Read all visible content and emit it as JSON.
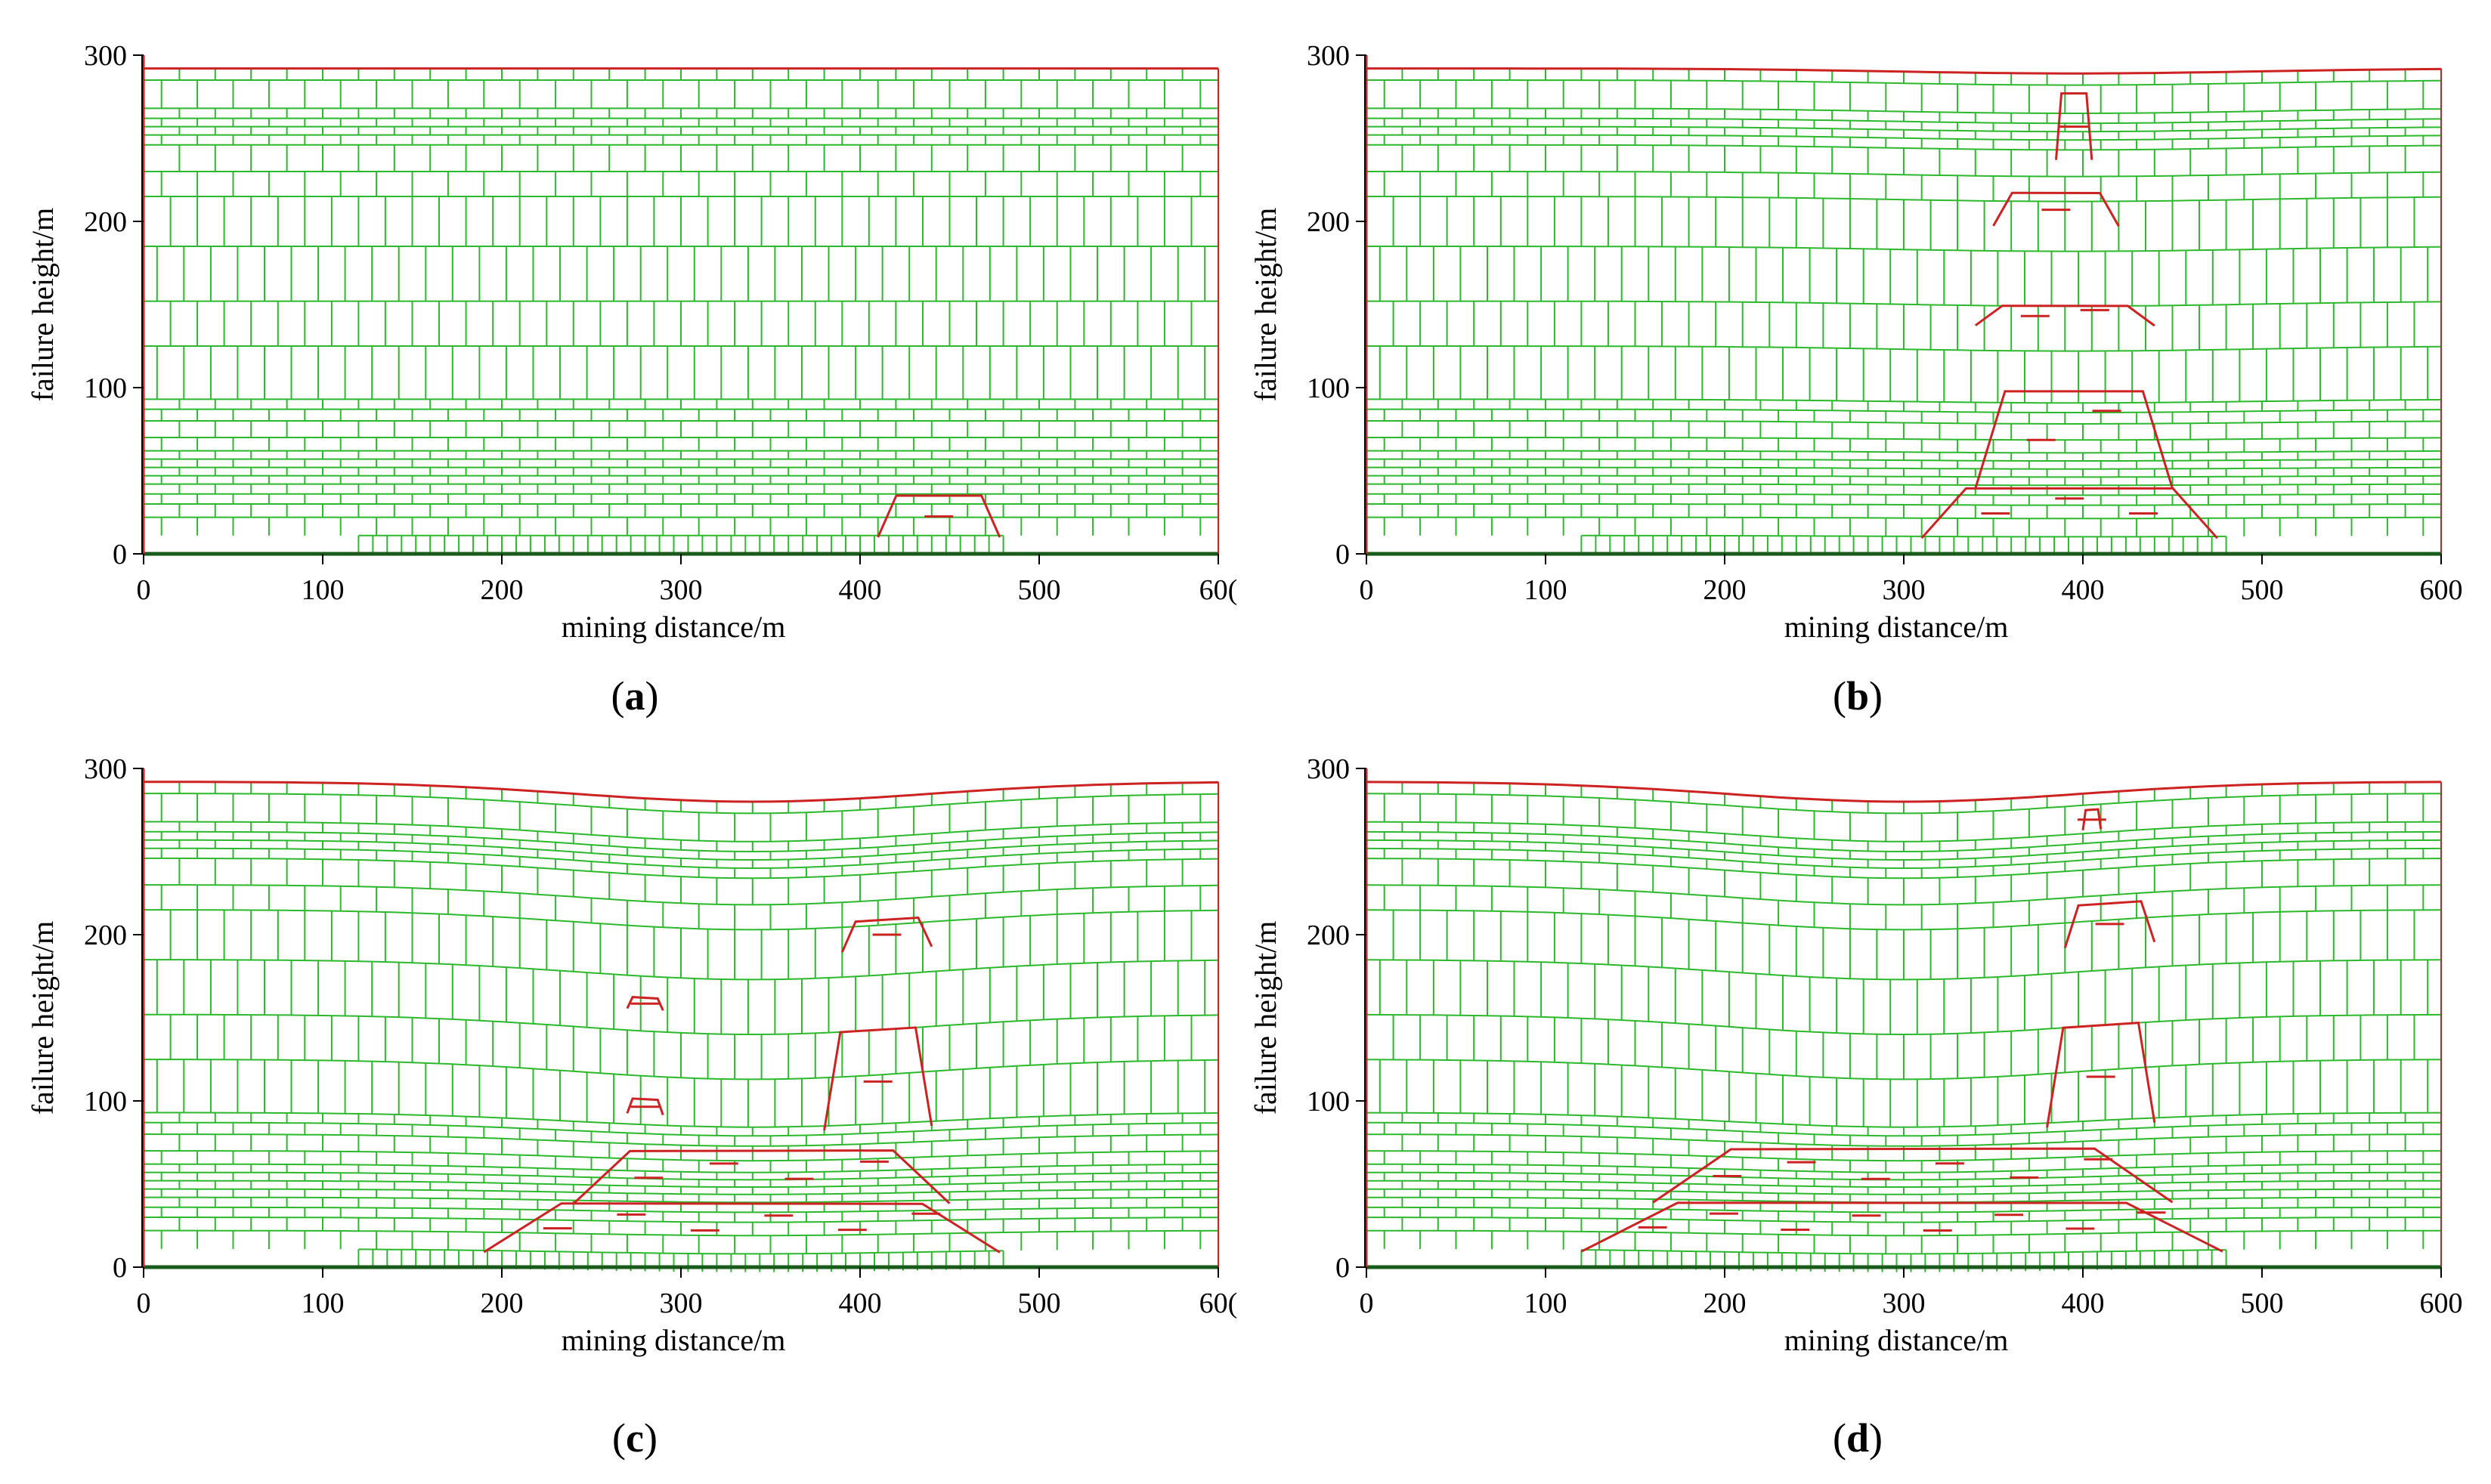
{
  "figure": {
    "captions": [
      "(a)",
      "(b)",
      "(c)",
      "(d)"
    ],
    "caption_letters": [
      "a",
      "b",
      "c",
      "d"
    ],
    "colors": {
      "block": "#2db82d",
      "failure": "#cc2222",
      "axis": "#000000",
      "baseline": "#1a5a1a"
    }
  },
  "chart_data": [
    {
      "panel": "a",
      "type": "other",
      "title": "",
      "xlabel": "mining distance/m",
      "ylabel": "failure height/m",
      "xlim": [
        0,
        600
      ],
      "ylim": [
        0,
        300
      ],
      "xticks": [
        "0",
        "100",
        "200",
        "300",
        "400",
        "500",
        "60("
      ],
      "yticks": [
        "0",
        "100",
        "200",
        "300"
      ],
      "model_extent_m": {
        "x": [
          0,
          600
        ],
        "y": [
          0,
          292
        ]
      },
      "coal_seam_extent_m": [
        120,
        480
      ],
      "subsidence_center_m": 440,
      "max_subsidence_m": 0,
      "failure_zones": [
        {
          "x": [
            410,
            478
          ],
          "y": [
            10,
            35
          ]
        }
      ]
    },
    {
      "panel": "b",
      "type": "other",
      "title": "",
      "xlabel": "mining distance/m",
      "ylabel": "failure height/m",
      "xlim": [
        0,
        600
      ],
      "ylim": [
        0,
        300
      ],
      "xticks": [
        "0",
        "100",
        "200",
        "300",
        "400",
        "500",
        "600"
      ],
      "yticks": [
        "0",
        "100",
        "200",
        "300"
      ],
      "model_extent_m": {
        "x": [
          0,
          600
        ],
        "y": [
          0,
          292
        ]
      },
      "coal_seam_extent_m": [
        120,
        480
      ],
      "subsidence_center_m": 395,
      "max_subsidence_m": 3,
      "failure_zones": [
        {
          "x": [
            310,
            475
          ],
          "y": [
            10,
            40
          ]
        },
        {
          "x": [
            340,
            450
          ],
          "y": [
            40,
            100
          ]
        },
        {
          "x": [
            340,
            440
          ],
          "y": [
            140,
            152
          ]
        },
        {
          "x": [
            350,
            420
          ],
          "y": [
            200,
            220
          ]
        },
        {
          "x": [
            385,
            405
          ],
          "y": [
            240,
            280
          ]
        }
      ]
    },
    {
      "panel": "c",
      "type": "other",
      "title": "",
      "xlabel": "mining distance/m",
      "ylabel": "failure height/m",
      "xlim": [
        0,
        600
      ],
      "ylim": [
        0,
        300
      ],
      "xticks": [
        "0",
        "100",
        "200",
        "300",
        "400",
        "500",
        "60("
      ],
      "yticks": [
        "0",
        "100",
        "200",
        "300"
      ],
      "model_extent_m": {
        "x": [
          0,
          600
        ],
        "y": [
          0,
          292
        ]
      },
      "coal_seam_extent_m": [
        120,
        480
      ],
      "subsidence_center_m": 340,
      "max_subsidence_m": 12,
      "failure_zones": [
        {
          "x": [
            190,
            478
          ],
          "y": [
            10,
            40
          ]
        },
        {
          "x": [
            240,
            450
          ],
          "y": [
            40,
            75
          ]
        },
        {
          "x": [
            270,
            290
          ],
          "y": [
            100,
            110
          ]
        },
        {
          "x": [
            380,
            440
          ],
          "y": [
            90,
            152
          ]
        },
        {
          "x": [
            270,
            290
          ],
          "y": [
            165,
            172
          ]
        },
        {
          "x": [
            390,
            440
          ],
          "y": [
            200,
            218
          ]
        }
      ]
    },
    {
      "panel": "d",
      "type": "other",
      "title": "",
      "xlabel": "mining distance/m",
      "ylabel": "failure height/m",
      "xlim": [
        0,
        600
      ],
      "ylim": [
        0,
        300
      ],
      "xticks": [
        "0",
        "100",
        "200",
        "300",
        "400",
        "500",
        "600"
      ],
      "yticks": [
        "0",
        "100",
        "200",
        "300"
      ],
      "model_extent_m": {
        "x": [
          0,
          600
        ],
        "y": [
          0,
          292
        ]
      },
      "coal_seam_extent_m": [
        120,
        480
      ],
      "subsidence_center_m": 300,
      "max_subsidence_m": 12,
      "failure_zones": [
        {
          "x": [
            120,
            478
          ],
          "y": [
            10,
            40
          ]
        },
        {
          "x": [
            160,
            450
          ],
          "y": [
            40,
            75
          ]
        },
        {
          "x": [
            380,
            440
          ],
          "y": [
            90,
            152
          ]
        },
        {
          "x": [
            390,
            440
          ],
          "y": [
            200,
            225
          ]
        },
        {
          "x": [
            400,
            410
          ],
          "y": [
            270,
            282
          ]
        }
      ]
    }
  ]
}
